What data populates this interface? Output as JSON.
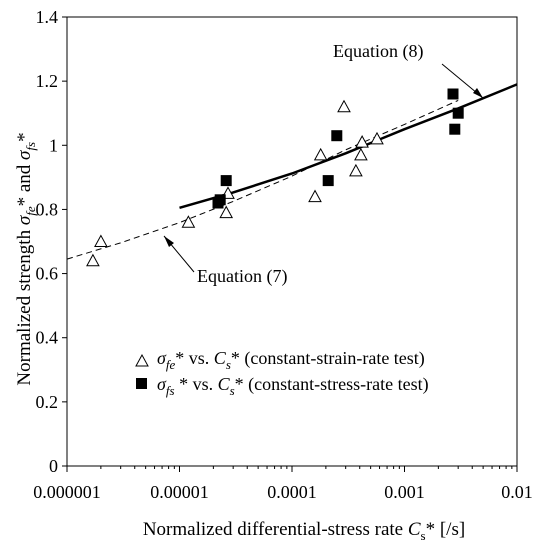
{
  "chart_data": {
    "type": "scatter",
    "xlabel": {
      "prefix": "Normalized differential-stress rate ",
      "symbol": "C",
      "sub": "s",
      "suffix": "* [/s]"
    },
    "ylabel": {
      "prefix": "Normalized strength ",
      "s1_sub": "fe",
      "mid": "* and ",
      "s2_sub": "fs",
      "suffix": "*"
    },
    "x_scale": "log",
    "xlim": [
      1e-06,
      0.01
    ],
    "ylim": [
      0,
      1.4
    ],
    "x_ticks": [
      {
        "value": 1e-06,
        "label": "0.000001"
      },
      {
        "value": 1e-05,
        "label": "0.00001"
      },
      {
        "value": 0.0001,
        "label": "0.0001"
      },
      {
        "value": 0.001,
        "label": "0.001"
      },
      {
        "value": 0.01,
        "label": "0.01"
      }
    ],
    "y_ticks": [
      {
        "value": 0,
        "label": "0"
      },
      {
        "value": 0.2,
        "label": "0.2"
      },
      {
        "value": 0.4,
        "label": "0.4"
      },
      {
        "value": 0.6,
        "label": "0.6"
      },
      {
        "value": 0.8,
        "label": "0.8"
      },
      {
        "value": 1,
        "label": "1"
      },
      {
        "value": 1.2,
        "label": "1.2"
      },
      {
        "value": 1.4,
        "label": "1.4"
      }
    ],
    "grid": false,
    "legend_position": "bottom-right",
    "series": [
      {
        "kind": "scatter",
        "marker": "open-triangle",
        "legend": {
          "s_sub": "fe",
          "mid": "* vs. ",
          "c_sub": "s",
          "tail": "* (constant-strain-rate test)"
        },
        "points": [
          {
            "x": 1.7e-06,
            "y": 0.64
          },
          {
            "x": 2e-06,
            "y": 0.7
          },
          {
            "x": 1.2e-05,
            "y": 0.76
          },
          {
            "x": 2.6e-05,
            "y": 0.79
          },
          {
            "x": 2.7e-05,
            "y": 0.85
          },
          {
            "x": 0.00016,
            "y": 0.84
          },
          {
            "x": 0.00018,
            "y": 0.97
          },
          {
            "x": 0.00029,
            "y": 1.12
          },
          {
            "x": 0.00037,
            "y": 0.92
          },
          {
            "x": 0.00041,
            "y": 0.97
          },
          {
            "x": 0.00042,
            "y": 1.01
          },
          {
            "x": 0.00057,
            "y": 1.02
          }
        ]
      },
      {
        "kind": "scatter",
        "marker": "filled-square",
        "legend": {
          "s_sub": "fs",
          "mid": " * vs. ",
          "c_sub": "s",
          "tail": "* (constant-stress-rate test)"
        },
        "points": [
          {
            "x": 2.2e-05,
            "y": 0.82
          },
          {
            "x": 2.3e-05,
            "y": 0.83
          },
          {
            "x": 2.6e-05,
            "y": 0.89
          },
          {
            "x": 0.00021,
            "y": 0.89
          },
          {
            "x": 0.00025,
            "y": 1.03
          },
          {
            "x": 0.0027,
            "y": 1.16
          },
          {
            "x": 0.0028,
            "y": 1.05
          },
          {
            "x": 0.003,
            "y": 1.1
          }
        ]
      },
      {
        "kind": "line",
        "style": "dashed",
        "label": "Equation (7)",
        "points": [
          {
            "x": 1e-06,
            "y": 0.645
          },
          {
            "x": 3e-06,
            "y": 0.696
          },
          {
            "x": 1e-05,
            "y": 0.759
          },
          {
            "x": 3e-05,
            "y": 0.825
          },
          {
            "x": 0.0001,
            "y": 0.904
          },
          {
            "x": 0.0003,
            "y": 0.986
          },
          {
            "x": 0.001,
            "y": 1.065
          },
          {
            "x": 0.003,
            "y": 1.14
          }
        ]
      },
      {
        "kind": "line",
        "style": "solid",
        "label": "Equation (8)",
        "points": [
          {
            "x": 1e-05,
            "y": 0.805
          },
          {
            "x": 3e-05,
            "y": 0.853
          },
          {
            "x": 0.0001,
            "y": 0.912
          },
          {
            "x": 0.0003,
            "y": 0.975
          },
          {
            "x": 0.001,
            "y": 1.05
          },
          {
            "x": 0.003,
            "y": 1.115
          },
          {
            "x": 0.01,
            "y": 1.19
          }
        ]
      }
    ]
  },
  "annotations": {
    "eq8": "Equation (8)",
    "eq7": "Equation (7)"
  },
  "symbols": {
    "sigma": "σ",
    "c": "C"
  }
}
